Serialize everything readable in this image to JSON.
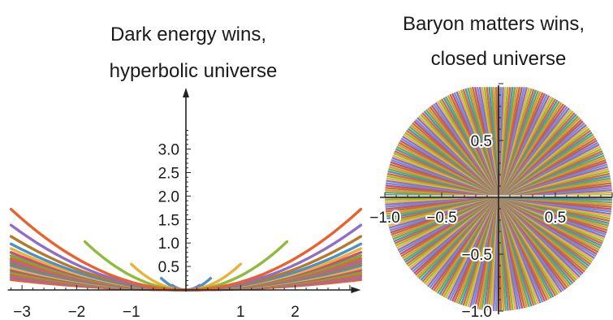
{
  "chart_data": [
    {
      "type": "line",
      "title_lines": [
        "Dark energy wins,",
        "hyperbolic universe"
      ],
      "xlim": [
        -3.2,
        3.2
      ],
      "ylim": [
        0,
        3.5
      ],
      "x_ticks": [
        -3,
        -2,
        -1,
        1,
        2
      ],
      "x_tick_labels": [
        "−3",
        "−2",
        "−1",
        "1",
        "2"
      ],
      "y_ticks": [
        0.5,
        1.0,
        1.5,
        2.0,
        2.5,
        3.0
      ],
      "y_tick_labels": [
        "0.5",
        "1.0",
        "1.5",
        "2.0",
        "2.5",
        "3.0"
      ],
      "grid": false,
      "series": [
        {
          "x_end": 3.2,
          "y_end": 1.72,
          "color": "#e9612d"
        },
        {
          "x_end": 3.2,
          "y_end": 1.38,
          "color": "#8e6fc4"
        },
        {
          "x_end": 3.2,
          "y_end": 1.14,
          "color": "#b8772a"
        },
        {
          "x_end": 3.2,
          "y_end": 0.98,
          "color": "#4a90c9"
        },
        {
          "x_end": 3.2,
          "y_end": 0.88,
          "color": "#e9b33a"
        },
        {
          "x_end": 3.2,
          "y_end": 0.8,
          "color": "#c94f7a"
        },
        {
          "x_end": 3.2,
          "y_end": 0.73,
          "color": "#6fae3b"
        },
        {
          "x_end": 3.2,
          "y_end": 0.67,
          "color": "#e9612d"
        },
        {
          "x_end": 3.2,
          "y_end": 0.62,
          "color": "#8e6fc4"
        },
        {
          "x_end": 3.2,
          "y_end": 0.57,
          "color": "#b8772a"
        },
        {
          "x_end": 3.2,
          "y_end": 0.52,
          "color": "#4a90c9"
        },
        {
          "x_end": 3.2,
          "y_end": 0.47,
          "color": "#e9b33a"
        },
        {
          "x_end": 3.2,
          "y_end": 0.42,
          "color": "#c94f7a"
        },
        {
          "x_end": 3.2,
          "y_end": 0.37,
          "color": "#6fae3b"
        },
        {
          "x_end": 3.2,
          "y_end": 0.32,
          "color": "#e9612d"
        },
        {
          "x_end": 3.2,
          "y_end": 0.27,
          "color": "#8e6fc4"
        },
        {
          "x_end": 3.2,
          "y_end": 0.22,
          "color": "#e9612d"
        },
        {
          "x_end": 1.85,
          "y_end": 1.03,
          "color": "#8fba3c"
        },
        {
          "x_end": 1.0,
          "y_end": 0.55,
          "color": "#e9b33a"
        },
        {
          "x_end": 0.45,
          "y_end": 0.25,
          "color": "#4a90c9"
        },
        {
          "x_end": 0.25,
          "y_end": 0.1,
          "color": "#8e6fc4"
        }
      ]
    },
    {
      "type": "line",
      "title_lines": [
        "Baryon matters wins,",
        "closed universe"
      ],
      "xlim": [
        -1.0,
        1.0
      ],
      "ylim": [
        -1.0,
        1.0
      ],
      "x_ticks": [
        -1.0,
        -0.5,
        0.5
      ],
      "x_tick_labels": [
        "−1.0",
        "−0.5",
        "0.5"
      ],
      "y_ticks": [
        0.5,
        -0.5,
        -1.0
      ],
      "y_tick_labels": [
        "0.5",
        "−0.5",
        "−1.0"
      ],
      "grid": false,
      "series_colors": [
        "#e9612d",
        "#8e6fc4",
        "#b8772a",
        "#4a90c9",
        "#e9b33a",
        "#c94f7a",
        "#6fae3b",
        "#8fba3c",
        "#6f8fcf",
        "#e0904a"
      ]
    }
  ]
}
